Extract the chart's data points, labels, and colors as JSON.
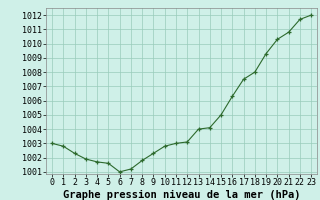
{
  "hours": [
    0,
    1,
    2,
    3,
    4,
    5,
    6,
    7,
    8,
    9,
    10,
    11,
    12,
    13,
    14,
    15,
    16,
    17,
    18,
    19,
    20,
    21,
    22,
    23
  ],
  "pressure": [
    1003.0,
    1002.8,
    1002.3,
    1001.9,
    1001.7,
    1001.6,
    1001.0,
    1001.2,
    1001.8,
    1002.3,
    1002.8,
    1003.0,
    1003.1,
    1004.0,
    1004.1,
    1005.0,
    1006.3,
    1007.5,
    1008.0,
    1009.3,
    1010.3,
    1010.8,
    1011.7,
    1012.0
  ],
  "ylim_min": 1001.0,
  "ylim_max": 1012.5,
  "yticks": [
    1001,
    1002,
    1003,
    1004,
    1005,
    1006,
    1007,
    1008,
    1009,
    1010,
    1011,
    1012
  ],
  "xticks": [
    0,
    1,
    2,
    3,
    4,
    5,
    6,
    7,
    8,
    9,
    10,
    11,
    12,
    13,
    14,
    15,
    16,
    17,
    18,
    19,
    20,
    21,
    22,
    23
  ],
  "line_color": "#2d6a2d",
  "marker": "+",
  "bg_color": "#cff0e8",
  "grid_color": "#99ccbb",
  "xlabel": "Graphe pression niveau de la mer (hPa)",
  "xlabel_fontsize": 7.5,
  "tick_fontsize": 6,
  "linewidth": 0.8,
  "markersize": 3.5,
  "markeredgewidth": 0.9
}
